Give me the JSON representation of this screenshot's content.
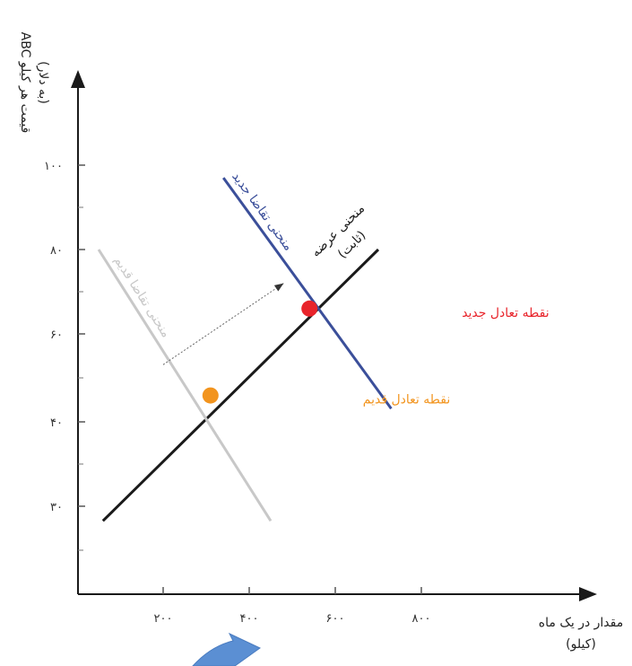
{
  "chart_data": {
    "type": "line",
    "title": "",
    "ylabel_line1": "قیمت هر کیلو ABC",
    "ylabel_line2": "(به دلار)",
    "xlabel_line1": "مقدار در یک ماه",
    "xlabel_line2": "(کیلو)",
    "x_ticks": [
      {
        "value": 200,
        "label": "۲۰۰"
      },
      {
        "value": 400,
        "label": "۴۰۰"
      },
      {
        "value": 600,
        "label": "۶۰۰"
      },
      {
        "value": 800,
        "label": "۸۰۰"
      }
    ],
    "y_ticks": [
      {
        "value": 30,
        "label": "۳۰"
      },
      {
        "value": 40,
        "label": "۴۰"
      },
      {
        "value": 60,
        "label": "۶۰"
      },
      {
        "value": 80,
        "label": "۸۰"
      },
      {
        "value": 100,
        "label": "۱۰۰"
      }
    ],
    "series": [
      {
        "name": "منحنی عرضه",
        "sub": "(ثابت)",
        "color": "#1a1a1a",
        "points": [
          [
            60,
            25
          ],
          [
            700,
            80
          ]
        ]
      },
      {
        "name": "منحنی تقاضا قدیم",
        "color": "#c8c8c8",
        "points": [
          [
            50,
            80
          ],
          [
            450,
            25
          ]
        ]
      },
      {
        "name": "منحنی تقاضا جدید",
        "color": "#3b4f9a",
        "points": [
          [
            340,
            97
          ],
          [
            730,
            43
          ]
        ]
      }
    ],
    "equilibria": [
      {
        "label": "نقطه تعادل قدیم",
        "x": 310,
        "y": 46,
        "color": "#f2941e"
      },
      {
        "label": "نقطه تعادل جدید",
        "x": 540,
        "y": 66,
        "color": "#e8242b"
      }
    ],
    "shift_arrow": {
      "from": [
        200,
        53
      ],
      "to": [
        480,
        72
      ]
    }
  }
}
